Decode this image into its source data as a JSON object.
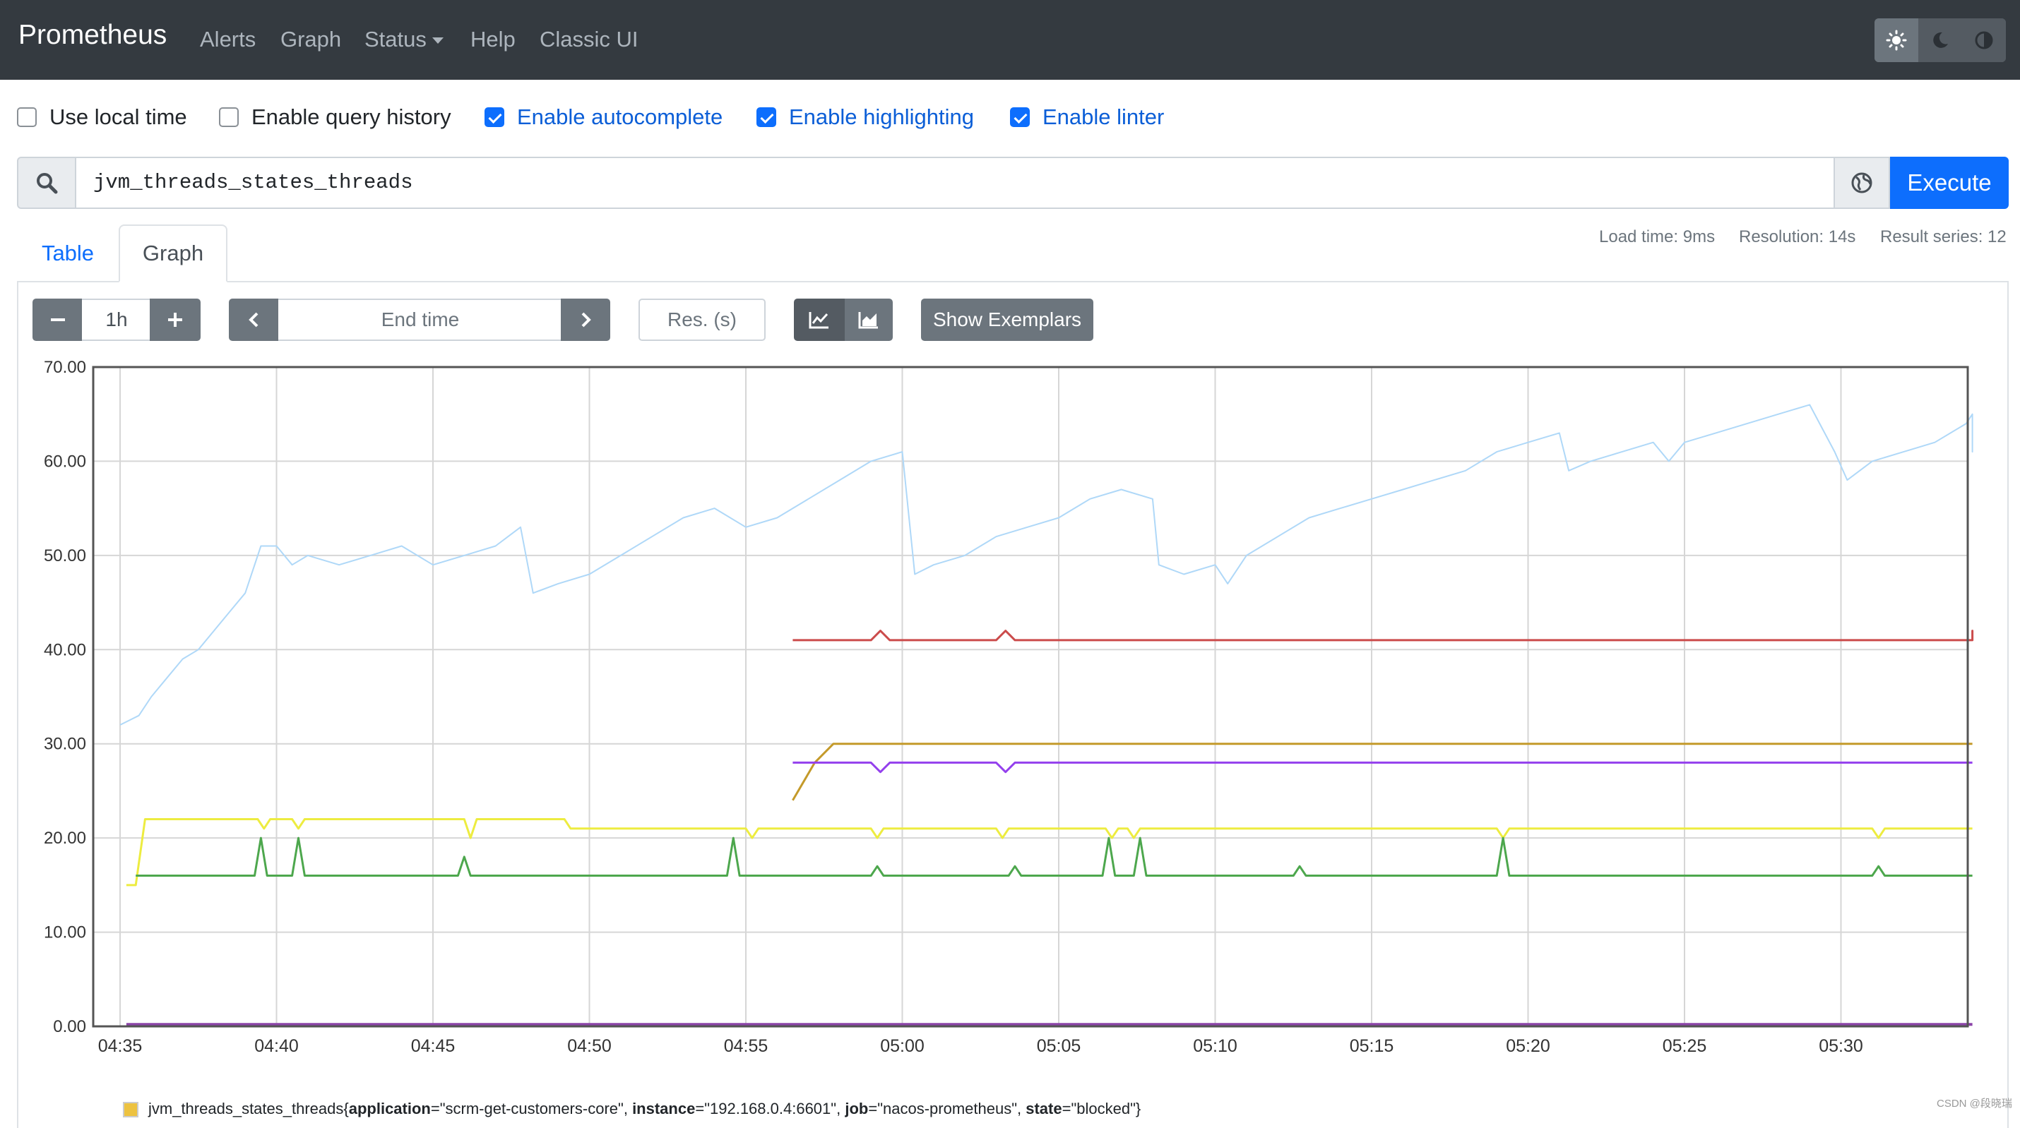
{
  "navbar": {
    "brand": "Prometheus",
    "items": [
      "Alerts",
      "Graph",
      "Status",
      "Help",
      "Classic UI"
    ],
    "theme_buttons": [
      "sun-icon",
      "moon-icon",
      "contrast-icon"
    ]
  },
  "options": [
    {
      "label": "Use local time",
      "checked": false
    },
    {
      "label": "Enable query history",
      "checked": false
    },
    {
      "label": "Enable autocomplete",
      "checked": true
    },
    {
      "label": "Enable highlighting",
      "checked": true
    },
    {
      "label": "Enable linter",
      "checked": true
    }
  ],
  "query": {
    "value": "jvm_threads_states_threads",
    "execute_label": "Execute"
  },
  "tabs": {
    "table": "Table",
    "graph": "Graph"
  },
  "stats": {
    "load_time": "Load time: 9ms",
    "resolution": "Resolution: 14s",
    "result_series": "Result series: 12"
  },
  "controls": {
    "range": "1h",
    "end_time_placeholder": "End time",
    "res_placeholder": "Res. (s)",
    "show_exemplars": "Show Exemplars"
  },
  "colors": {
    "accent": "#0d6efd",
    "navbar": "#343a40"
  },
  "chart_data": {
    "type": "line",
    "ylim": [
      0,
      70
    ],
    "y_ticks": [
      "0.00",
      "10.00",
      "20.00",
      "30.00",
      "40.00",
      "50.00",
      "60.00",
      "70.00"
    ],
    "x_ticks": [
      "04:35",
      "04:40",
      "04:45",
      "04:50",
      "04:55",
      "05:00",
      "05:05",
      "05:10",
      "05:15",
      "05:20",
      "05:25",
      "05:30"
    ],
    "x_range_minutes": [
      0,
      59
    ],
    "series": [
      {
        "color": "#afd8f8",
        "width": 2,
        "points": [
          [
            0,
            32
          ],
          [
            0.6,
            33
          ],
          [
            1,
            35
          ],
          [
            1.5,
            37
          ],
          [
            2,
            39
          ],
          [
            2.5,
            40
          ],
          [
            3,
            42
          ],
          [
            3.5,
            44
          ],
          [
            4,
            46
          ],
          [
            4.5,
            51
          ],
          [
            5,
            51
          ],
          [
            5.5,
            49
          ],
          [
            6,
            50
          ],
          [
            7,
            49
          ],
          [
            8,
            50
          ],
          [
            9,
            51
          ],
          [
            10,
            49
          ],
          [
            11,
            50
          ],
          [
            12,
            51
          ],
          [
            12.8,
            53
          ],
          [
            13.2,
            46
          ],
          [
            14,
            47
          ],
          [
            15,
            48
          ],
          [
            16,
            50
          ],
          [
            17,
            52
          ],
          [
            18,
            54
          ],
          [
            19,
            55
          ],
          [
            20,
            53
          ],
          [
            21,
            54
          ],
          [
            22,
            56
          ],
          [
            23,
            58
          ],
          [
            24,
            60
          ],
          [
            25,
            61
          ],
          [
            25.4,
            48
          ],
          [
            26,
            49
          ],
          [
            27,
            50
          ],
          [
            28,
            52
          ],
          [
            29,
            53
          ],
          [
            30,
            54
          ],
          [
            31,
            56
          ],
          [
            32,
            57
          ],
          [
            33,
            56
          ],
          [
            33.2,
            49
          ],
          [
            34,
            48
          ],
          [
            35,
            49
          ],
          [
            35.4,
            47
          ],
          [
            36,
            50
          ],
          [
            37,
            52
          ],
          [
            38,
            54
          ],
          [
            39,
            55
          ],
          [
            40,
            56
          ],
          [
            41,
            57
          ],
          [
            42,
            58
          ],
          [
            43,
            59
          ],
          [
            44,
            61
          ],
          [
            45,
            62
          ],
          [
            46,
            63
          ],
          [
            46.3,
            59
          ],
          [
            47,
            60
          ],
          [
            48,
            61
          ],
          [
            49,
            62
          ],
          [
            49.5,
            60
          ],
          [
            50,
            62
          ],
          [
            51,
            63
          ],
          [
            52,
            64
          ],
          [
            53,
            65
          ],
          [
            54,
            66
          ],
          [
            54.8,
            61
          ],
          [
            55.2,
            58
          ],
          [
            56,
            60
          ],
          [
            57,
            61
          ],
          [
            58,
            62
          ],
          [
            59,
            64
          ],
          [
            60,
            65
          ],
          [
            61,
            64
          ],
          [
            62,
            63
          ],
          [
            63,
            61
          ],
          [
            64,
            61
          ],
          [
            65,
            62
          ]
        ]
      },
      {
        "color": "#cb4b4b",
        "width": 3,
        "points": [
          [
            21.5,
            41
          ],
          [
            24,
            41
          ],
          [
            24.3,
            42
          ],
          [
            24.6,
            41
          ],
          [
            28,
            41
          ],
          [
            28.3,
            42
          ],
          [
            28.6,
            41
          ],
          [
            59.3,
            41
          ],
          [
            59.6,
            42
          ],
          [
            60,
            41
          ]
        ]
      },
      {
        "color": "#c49a2a",
        "width": 3,
        "points": [
          [
            21.5,
            24
          ],
          [
            22.2,
            28
          ],
          [
            22.8,
            30
          ],
          [
            60,
            30
          ]
        ]
      },
      {
        "color": "#9440ed",
        "width": 3,
        "points": [
          [
            21.5,
            28
          ],
          [
            24,
            28
          ],
          [
            24.3,
            27
          ],
          [
            24.6,
            28
          ],
          [
            28,
            28
          ],
          [
            28.3,
            27
          ],
          [
            28.6,
            28
          ],
          [
            60,
            28
          ]
        ]
      },
      {
        "color": "#edec40",
        "width": 3,
        "points": [
          [
            0.2,
            15
          ],
          [
            0.5,
            15
          ],
          [
            0.8,
            22
          ],
          [
            4.4,
            22
          ],
          [
            4.6,
            21
          ],
          [
            4.8,
            22
          ],
          [
            5.5,
            22
          ],
          [
            5.7,
            21
          ],
          [
            5.9,
            22
          ],
          [
            11,
            22
          ],
          [
            11.2,
            20
          ],
          [
            11.4,
            22
          ],
          [
            14.2,
            22
          ],
          [
            14.4,
            21
          ],
          [
            20,
            21
          ],
          [
            20.2,
            20
          ],
          [
            20.4,
            21
          ],
          [
            24,
            21
          ],
          [
            24.2,
            20
          ],
          [
            24.4,
            21
          ],
          [
            28,
            21
          ],
          [
            28.2,
            20
          ],
          [
            28.4,
            21
          ],
          [
            31.5,
            21
          ],
          [
            31.7,
            20
          ],
          [
            31.9,
            21
          ],
          [
            32.2,
            21
          ],
          [
            32.4,
            20
          ],
          [
            32.6,
            21
          ],
          [
            44,
            21
          ],
          [
            44.2,
            20
          ],
          [
            44.4,
            21
          ],
          [
            56,
            21
          ],
          [
            56.2,
            20
          ],
          [
            56.4,
            21
          ],
          [
            60,
            21
          ]
        ]
      },
      {
        "color": "#4da74d",
        "width": 3,
        "points": [
          [
            0.5,
            16
          ],
          [
            4.3,
            16
          ],
          [
            4.5,
            20
          ],
          [
            4.7,
            16
          ],
          [
            5.5,
            16
          ],
          [
            5.7,
            20
          ],
          [
            5.9,
            16
          ],
          [
            10.8,
            16
          ],
          [
            11,
            18
          ],
          [
            11.2,
            16
          ],
          [
            19.4,
            16
          ],
          [
            19.6,
            20
          ],
          [
            19.8,
            16
          ],
          [
            24,
            16
          ],
          [
            24.2,
            17
          ],
          [
            24.4,
            16
          ],
          [
            28.4,
            16
          ],
          [
            28.6,
            17
          ],
          [
            28.8,
            16
          ],
          [
            31.4,
            16
          ],
          [
            31.6,
            20
          ],
          [
            31.8,
            16
          ],
          [
            32.4,
            16
          ],
          [
            32.6,
            20
          ],
          [
            32.8,
            16
          ],
          [
            37.5,
            16
          ],
          [
            37.7,
            17
          ],
          [
            37.9,
            16
          ],
          [
            44,
            16
          ],
          [
            44.2,
            20
          ],
          [
            44.4,
            16
          ],
          [
            56,
            16
          ],
          [
            56.2,
            17
          ],
          [
            56.4,
            16
          ],
          [
            60,
            16
          ]
        ]
      },
      {
        "color": "#8b44a8",
        "width": 4,
        "points": [
          [
            0.2,
            0.2
          ],
          [
            60,
            0.2
          ]
        ]
      }
    ]
  },
  "legend": {
    "entries": [
      {
        "metric": "jvm_threads_states_threads{",
        "pairs": [
          {
            "k": "application",
            "v": "\"scrm-get-customers-core\""
          },
          {
            "k": "instance",
            "v": "\"192.168.0.4:6601\""
          },
          {
            "k": "job",
            "v": "\"nacos-prometheus\""
          },
          {
            "k": "state",
            "v": "\"blocked\""
          }
        ],
        "close": "}"
      }
    ]
  },
  "watermark": "CSDN @段晓瑞"
}
